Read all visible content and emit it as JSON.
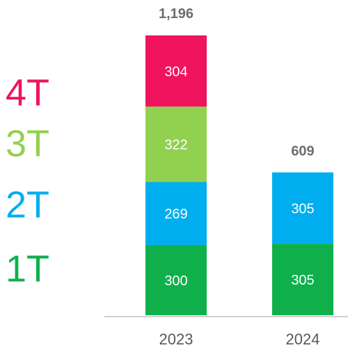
{
  "chart_data": {
    "type": "stacked_bar",
    "categories": [
      "2023",
      "2024"
    ],
    "series": [
      {
        "name": "1T",
        "color": "#0fb04c",
        "values": [
          300,
          305
        ]
      },
      {
        "name": "2T",
        "color": "#00aeef",
        "values": [
          269,
          305
        ]
      },
      {
        "name": "3T",
        "color": "#92d050",
        "values": [
          322,
          null
        ]
      },
      {
        "name": "4T",
        "color": "#f0135e",
        "values": [
          304,
          null
        ]
      }
    ],
    "totals": {
      "values": [
        1196,
        609
      ],
      "value_labels": [
        "1,196",
        "609"
      ]
    }
  }
}
